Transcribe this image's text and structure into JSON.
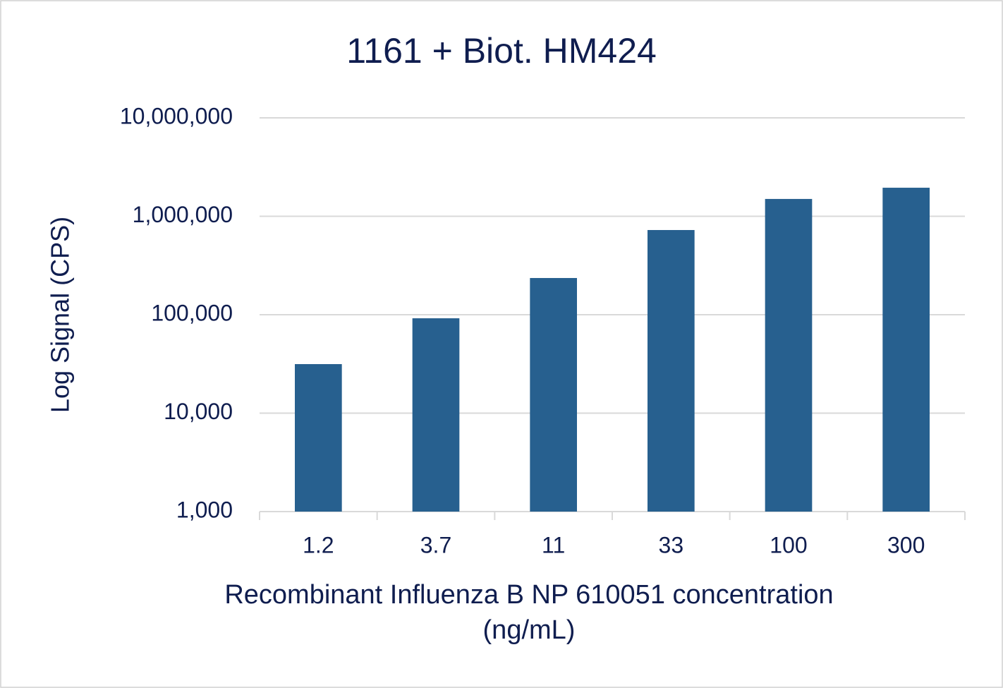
{
  "chart_data": {
    "type": "bar",
    "title": "1161 + Biot. HM424",
    "x_label": [
      "Recombinant Influenza B NP 610051 concentration",
      "(ng/mL)"
    ],
    "y_label": "Log Signal (CPS)",
    "categories": [
      "1.2",
      "3.7",
      "11",
      "33",
      "100",
      "300"
    ],
    "values": [
      31500,
      92000,
      236000,
      725000,
      1500000,
      1950000
    ],
    "color": "#27608f",
    "log_scale": true,
    "ylim": [
      1000,
      10000000
    ],
    "yticks": [
      {
        "value": 1000,
        "label": "1,000"
      },
      {
        "value": 10000,
        "label": "10,000"
      },
      {
        "value": 100000,
        "label": "100,000"
      },
      {
        "value": 1000000,
        "label": "1,000,000"
      },
      {
        "value": 10000000,
        "label": "10,000,000"
      }
    ],
    "grid": true
  }
}
